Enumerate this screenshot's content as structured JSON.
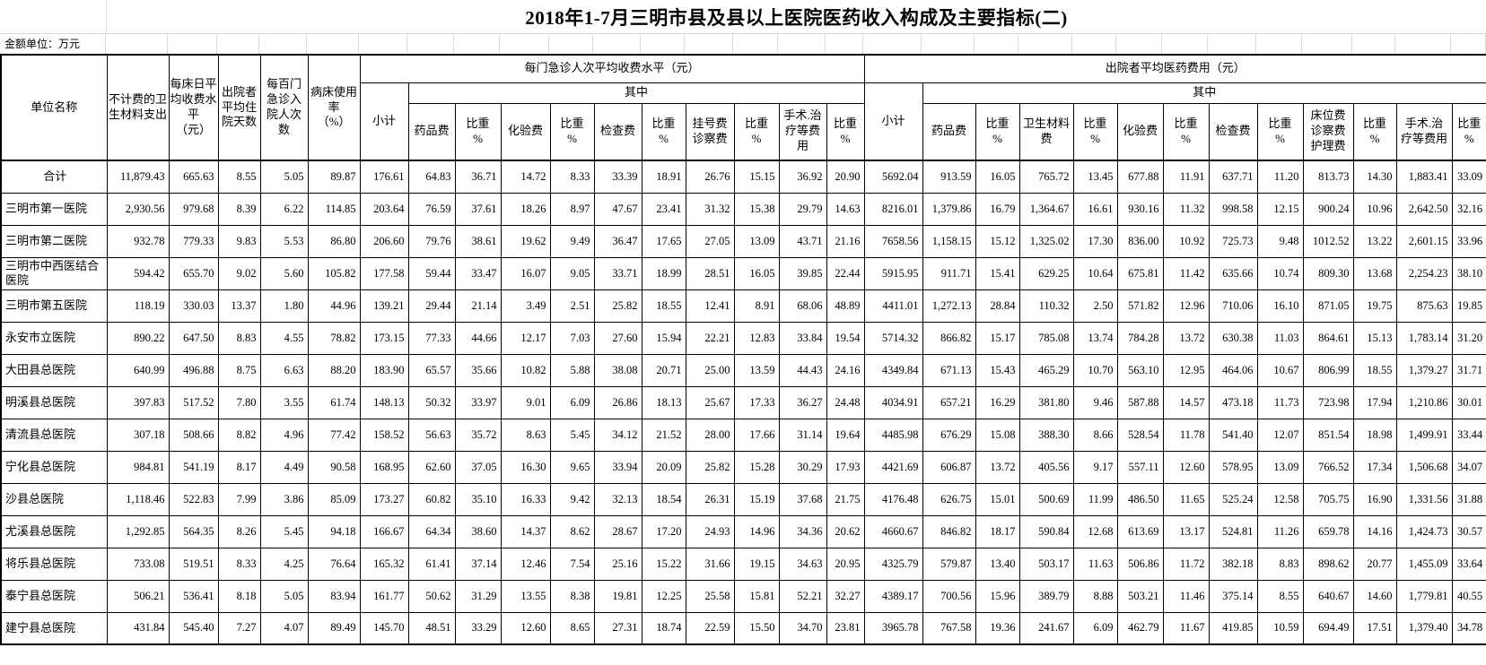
{
  "title": "2018年1-7月三明市县及县以上医院医药收入构成及主要指标(二)",
  "unit_note": "金额单位：万元",
  "header": {
    "fixed": [
      "单位名称",
      "不计费的卫生材料支出",
      "每床日平均收费水平\n（元）",
      "出院者平均住院天数",
      "每百门急诊入院人次数",
      "病床使用率\n（%）"
    ],
    "group1": {
      "title": "每门急诊人次平均收费水平（元）",
      "among": "其中",
      "subtotal": "小计",
      "cols": [
        "药品费",
        "比重\n%",
        "化验费",
        "比重\n%",
        "检查费",
        "比重\n%",
        "挂号费\n诊察费",
        "比重\n%",
        "手术.治\n疗等费用",
        "比重\n%"
      ]
    },
    "group2": {
      "title": "出院者平均医药费用（元）",
      "among": "其中",
      "subtotal": "小计",
      "cols": [
        "药品费",
        "比重\n%",
        "卫生材料\n费",
        "比重\n%",
        "化验费",
        "比重\n%",
        "检查费",
        "比重\n%",
        "床位费\n诊察费\n护理费",
        "比重\n%",
        "手术.治\n疗等费用",
        "比重\n%"
      ]
    }
  },
  "rows": [
    {
      "name": "合计",
      "center": true,
      "values": [
        "11,879.43",
        "665.63",
        "8.55",
        "5.05",
        "89.87",
        "176.61",
        "64.83",
        "36.71",
        "14.72",
        "8.33",
        "33.39",
        "18.91",
        "26.76",
        "15.15",
        "36.92",
        "20.90",
        "5692.04",
        "913.59",
        "16.05",
        "765.72",
        "13.45",
        "677.88",
        "11.91",
        "637.71",
        "11.20",
        "813.73",
        "14.30",
        "1,883.41",
        "33.09"
      ]
    },
    {
      "name": "三明市第一医院",
      "values": [
        "2,930.56",
        "979.68",
        "8.39",
        "6.22",
        "114.85",
        "203.64",
        "76.59",
        "37.61",
        "18.26",
        "8.97",
        "47.67",
        "23.41",
        "31.32",
        "15.38",
        "29.79",
        "14.63",
        "8216.01",
        "1,379.86",
        "16.79",
        "1,364.67",
        "16.61",
        "930.16",
        "11.32",
        "998.58",
        "12.15",
        "900.24",
        "10.96",
        "2,642.50",
        "32.16"
      ]
    },
    {
      "name": "三明市第二医院",
      "values": [
        "932.78",
        "779.33",
        "9.83",
        "5.53",
        "86.80",
        "206.60",
        "79.76",
        "38.61",
        "19.62",
        "9.49",
        "36.47",
        "17.65",
        "27.05",
        "13.09",
        "43.71",
        "21.16",
        "7658.56",
        "1,158.15",
        "15.12",
        "1,325.02",
        "17.30",
        "836.00",
        "10.92",
        "725.73",
        "9.48",
        "1012.52",
        "13.22",
        "2,601.15",
        "33.96"
      ]
    },
    {
      "name": "三明市中西医结合医院",
      "values": [
        "594.42",
        "655.70",
        "9.02",
        "5.60",
        "105.82",
        "177.58",
        "59.44",
        "33.47",
        "16.07",
        "9.05",
        "33.71",
        "18.99",
        "28.51",
        "16.05",
        "39.85",
        "22.44",
        "5915.95",
        "911.71",
        "15.41",
        "629.25",
        "10.64",
        "675.81",
        "11.42",
        "635.66",
        "10.74",
        "809.30",
        "13.68",
        "2,254.23",
        "38.10"
      ]
    },
    {
      "name": "三明市第五医院",
      "values": [
        "118.19",
        "330.03",
        "13.37",
        "1.80",
        "44.96",
        "139.21",
        "29.44",
        "21.14",
        "3.49",
        "2.51",
        "25.82",
        "18.55",
        "12.41",
        "8.91",
        "68.06",
        "48.89",
        "4411.01",
        "1,272.13",
        "28.84",
        "110.32",
        "2.50",
        "571.82",
        "12.96",
        "710.06",
        "16.10",
        "871.05",
        "19.75",
        "875.63",
        "19.85"
      ]
    },
    {
      "name": "永安市立医院",
      "values": [
        "890.22",
        "647.50",
        "8.83",
        "4.55",
        "78.82",
        "173.15",
        "77.33",
        "44.66",
        "12.17",
        "7.03",
        "27.60",
        "15.94",
        "22.21",
        "12.83",
        "33.84",
        "19.54",
        "5714.32",
        "866.82",
        "15.17",
        "785.08",
        "13.74",
        "784.28",
        "13.72",
        "630.38",
        "11.03",
        "864.61",
        "15.13",
        "1,783.14",
        "31.20"
      ]
    },
    {
      "name": "大田县总医院",
      "values": [
        "640.99",
        "496.88",
        "8.75",
        "6.63",
        "88.20",
        "183.90",
        "65.57",
        "35.66",
        "10.82",
        "5.88",
        "38.08",
        "20.71",
        "25.00",
        "13.59",
        "44.43",
        "24.16",
        "4349.84",
        "671.13",
        "15.43",
        "465.29",
        "10.70",
        "563.10",
        "12.95",
        "464.06",
        "10.67",
        "806.99",
        "18.55",
        "1,379.27",
        "31.71"
      ]
    },
    {
      "name": "明溪县总医院",
      "values": [
        "397.83",
        "517.52",
        "7.80",
        "3.55",
        "61.74",
        "148.13",
        "50.32",
        "33.97",
        "9.01",
        "6.09",
        "26.86",
        "18.13",
        "25.67",
        "17.33",
        "36.27",
        "24.48",
        "4034.91",
        "657.21",
        "16.29",
        "381.80",
        "9.46",
        "587.88",
        "14.57",
        "473.18",
        "11.73",
        "723.98",
        "17.94",
        "1,210.86",
        "30.01"
      ]
    },
    {
      "name": "清流县总医院",
      "values": [
        "307.18",
        "508.66",
        "8.82",
        "4.96",
        "77.42",
        "158.52",
        "56.63",
        "35.72",
        "8.63",
        "5.45",
        "34.12",
        "21.52",
        "28.00",
        "17.66",
        "31.14",
        "19.64",
        "4485.98",
        "676.29",
        "15.08",
        "388.30",
        "8.66",
        "528.54",
        "11.78",
        "541.40",
        "12.07",
        "851.54",
        "18.98",
        "1,499.91",
        "33.44"
      ]
    },
    {
      "name": "宁化县总医院",
      "values": [
        "984.81",
        "541.19",
        "8.17",
        "4.49",
        "90.58",
        "168.95",
        "62.60",
        "37.05",
        "16.30",
        "9.65",
        "33.94",
        "20.09",
        "25.82",
        "15.28",
        "30.29",
        "17.93",
        "4421.69",
        "606.87",
        "13.72",
        "405.56",
        "9.17",
        "557.11",
        "12.60",
        "578.95",
        "13.09",
        "766.52",
        "17.34",
        "1,506.68",
        "34.07"
      ]
    },
    {
      "name": "沙县总医院",
      "values": [
        "1,118.46",
        "522.83",
        "7.99",
        "3.86",
        "85.09",
        "173.27",
        "60.82",
        "35.10",
        "16.33",
        "9.42",
        "32.13",
        "18.54",
        "26.31",
        "15.19",
        "37.68",
        "21.75",
        "4176.48",
        "626.75",
        "15.01",
        "500.69",
        "11.99",
        "486.50",
        "11.65",
        "525.24",
        "12.58",
        "705.75",
        "16.90",
        "1,331.56",
        "31.88"
      ]
    },
    {
      "name": "尤溪县总医院",
      "values": [
        "1,292.85",
        "564.35",
        "8.26",
        "5.45",
        "94.18",
        "166.67",
        "64.34",
        "38.60",
        "14.37",
        "8.62",
        "28.67",
        "17.20",
        "24.93",
        "14.96",
        "34.36",
        "20.62",
        "4660.67",
        "846.82",
        "18.17",
        "590.84",
        "12.68",
        "613.69",
        "13.17",
        "524.81",
        "11.26",
        "659.78",
        "14.16",
        "1,424.73",
        "30.57"
      ]
    },
    {
      "name": "将乐县总医院",
      "values": [
        "733.08",
        "519.51",
        "8.33",
        "4.25",
        "76.64",
        "165.32",
        "61.41",
        "37.14",
        "12.46",
        "7.54",
        "25.16",
        "15.22",
        "31.66",
        "19.15",
        "34.63",
        "20.95",
        "4325.79",
        "579.87",
        "13.40",
        "503.17",
        "11.63",
        "506.86",
        "11.72",
        "382.18",
        "8.83",
        "898.62",
        "20.77",
        "1,455.09",
        "33.64"
      ]
    },
    {
      "name": "泰宁县总医院",
      "values": [
        "506.21",
        "536.41",
        "8.18",
        "5.05",
        "83.94",
        "161.77",
        "50.62",
        "31.29",
        "13.55",
        "8.38",
        "19.81",
        "12.25",
        "25.58",
        "15.81",
        "52.21",
        "32.27",
        "4389.17",
        "700.56",
        "15.96",
        "389.79",
        "8.88",
        "503.21",
        "11.46",
        "375.14",
        "8.55",
        "640.67",
        "14.60",
        "1,779.81",
        "40.55"
      ]
    },
    {
      "name": "建宁县总医院",
      "values": [
        "431.84",
        "545.40",
        "7.27",
        "4.07",
        "89.49",
        "145.70",
        "48.51",
        "33.29",
        "12.60",
        "8.65",
        "27.31",
        "18.74",
        "22.59",
        "15.50",
        "34.70",
        "23.81",
        "3965.78",
        "767.58",
        "19.36",
        "241.67",
        "6.09",
        "462.79",
        "11.67",
        "419.85",
        "10.59",
        "694.49",
        "17.51",
        "1,379.40",
        "34.78"
      ]
    }
  ]
}
